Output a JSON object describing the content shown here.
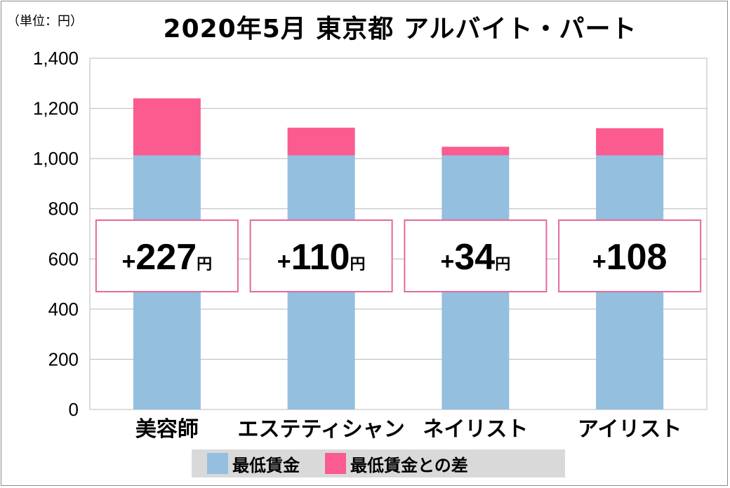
{
  "unit_label": "（単位：円）",
  "title": "2020年5月 東京都 アルバイト・パート",
  "colors": {
    "base": "#94bfdf",
    "diff": "#fb5b8e",
    "grid": "#b8b8b8",
    "box_border": "#e36a9c"
  },
  "chart_data": {
    "type": "bar",
    "stacked": true,
    "categories": [
      "美容師",
      "エステティシャン",
      "ネイリスト",
      "アイリスト"
    ],
    "series": [
      {
        "name": "最低賃金",
        "values": [
          1013,
          1013,
          1013,
          1013
        ]
      },
      {
        "name": "最低賃金との差",
        "values": [
          227,
          110,
          34,
          108
        ]
      }
    ],
    "ylim": [
      0,
      1400
    ],
    "yticks": [
      "0",
      "200",
      "400",
      "600",
      "800",
      "1,000",
      "1,200",
      "1,400"
    ],
    "grid": true,
    "legend": "bottom",
    "callouts": [
      {
        "sign": "+",
        "number": "227",
        "unit": "円"
      },
      {
        "sign": "+",
        "number": "110",
        "unit": "円"
      },
      {
        "sign": "+",
        "number": "34",
        "unit": "円"
      },
      {
        "sign": "+",
        "number": "108",
        "unit": ""
      }
    ]
  }
}
